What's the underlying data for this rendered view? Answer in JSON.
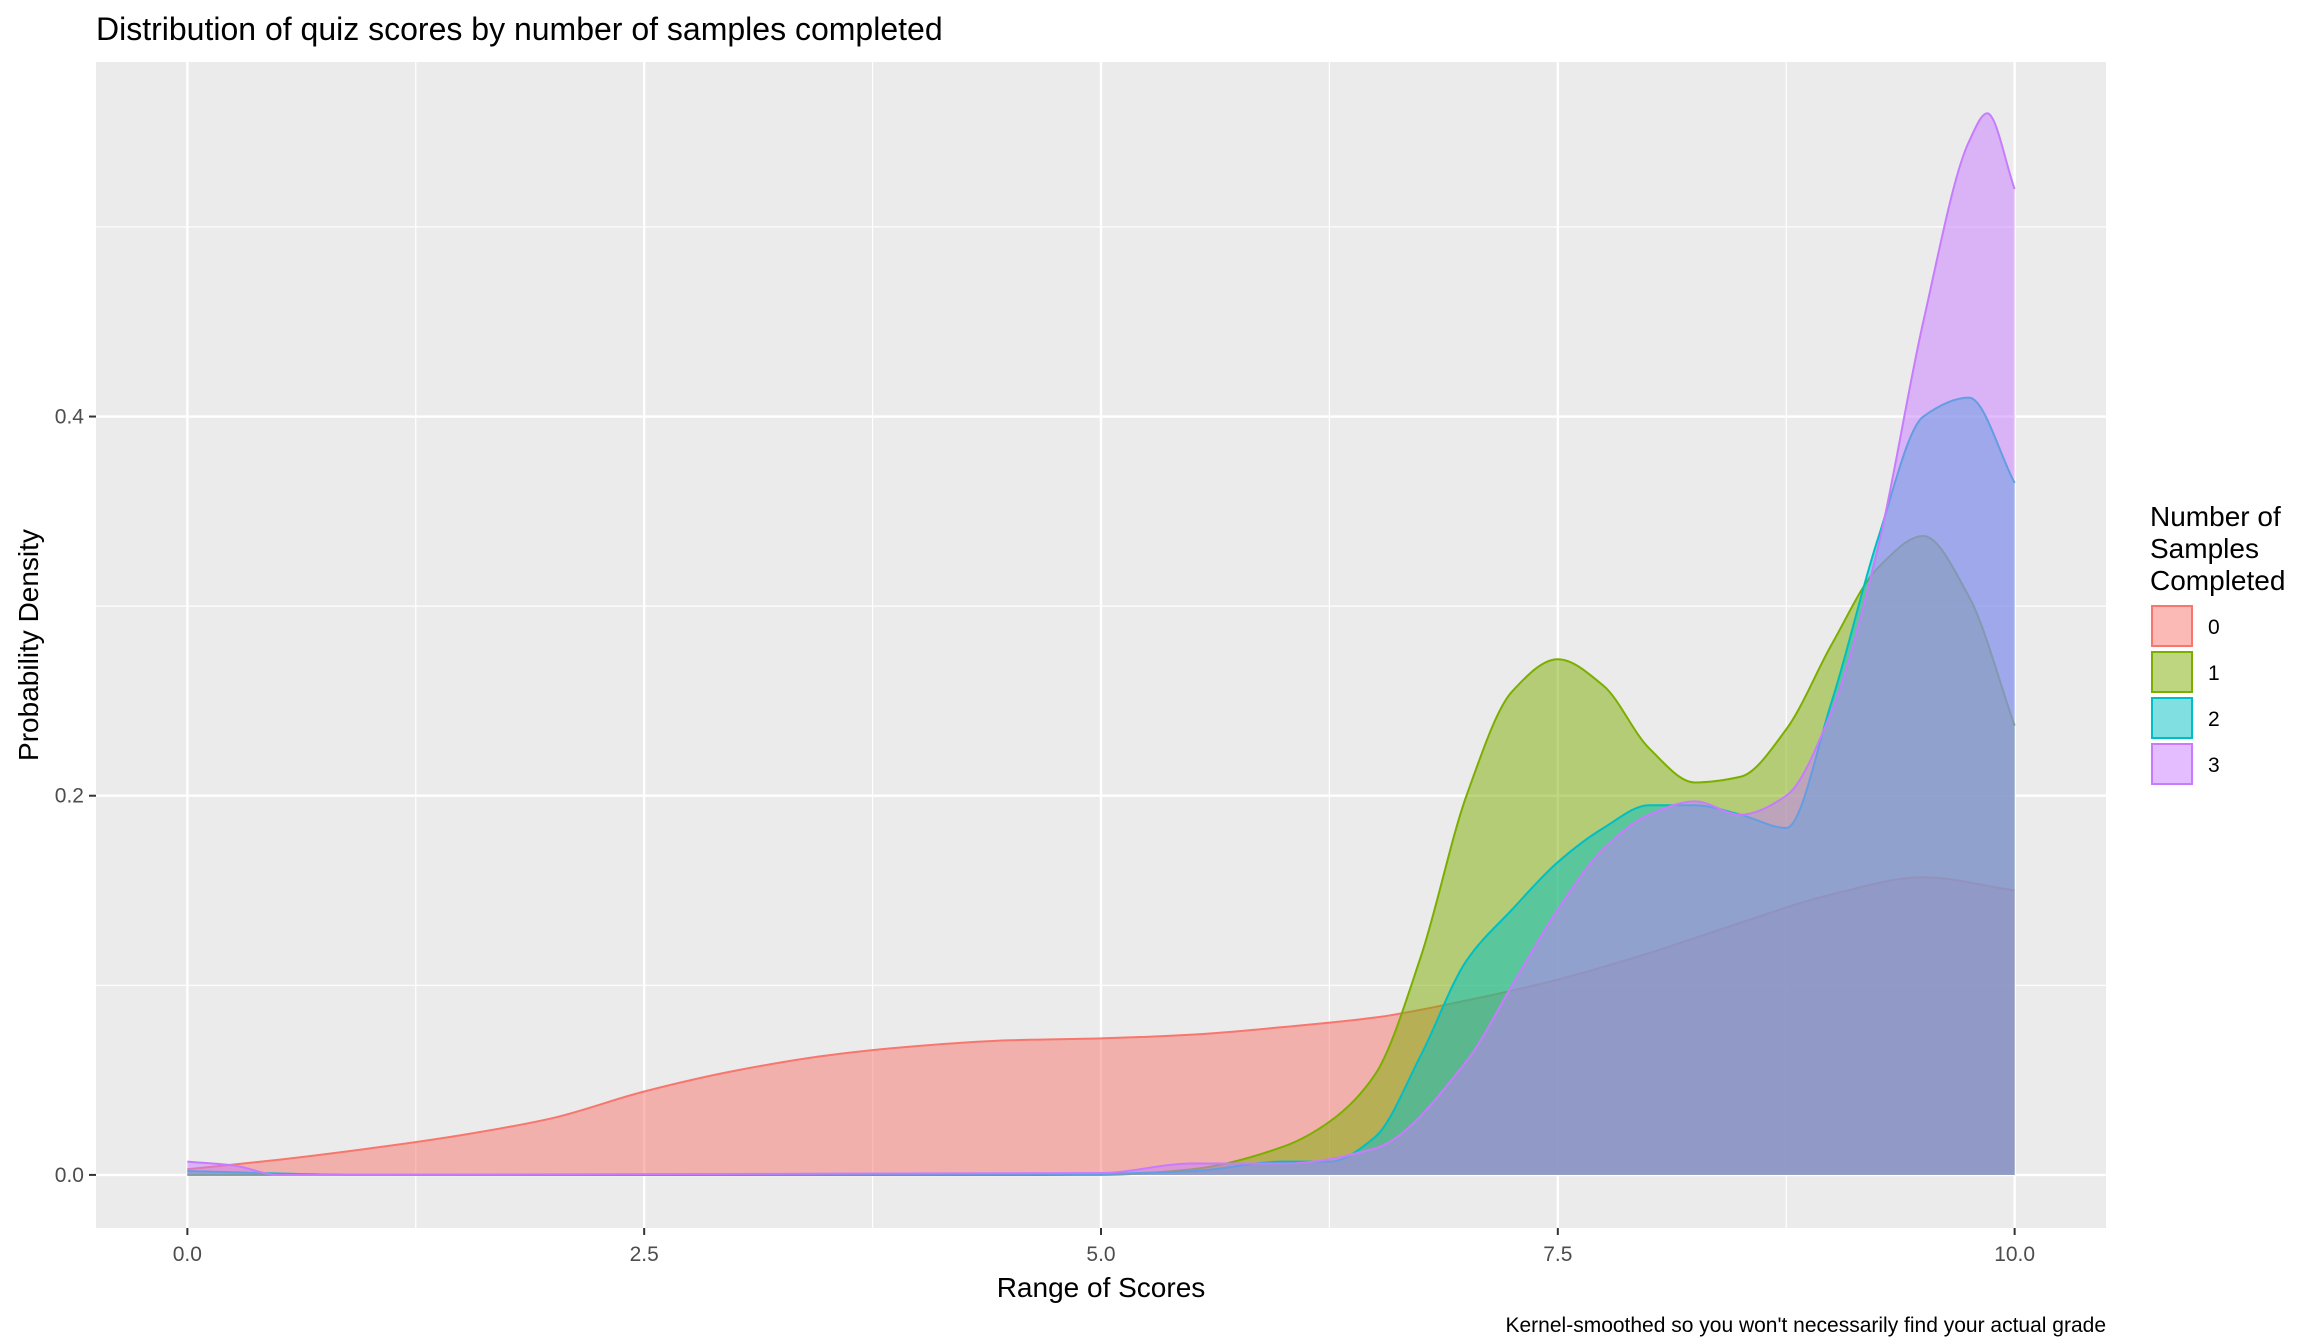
{
  "chart_data": {
    "type": "area",
    "subtype": "density",
    "title": "Distribution of quiz scores by number of samples completed",
    "xlabel": "Range of Scores",
    "ylabel": "Probability Density",
    "caption": "Kernel-smoothed so you won't necessarily find your actual grade",
    "xlim": [
      -0.5,
      10.5
    ],
    "ylim": [
      -0.028,
      0.587
    ],
    "x_ticks": [
      0,
      2.5,
      5,
      7.5,
      10
    ],
    "x_tick_labels": [
      "0.0",
      "2.5",
      "5.0",
      "7.5",
      "10.0"
    ],
    "y_ticks": [
      0,
      0.2,
      0.4
    ],
    "y_tick_labels": [
      "0.0",
      "0.2",
      "0.4"
    ],
    "grid": true,
    "legend": {
      "title": "Number of Samples Completed",
      "title_lines": [
        "Number of",
        "Samples",
        "Completed"
      ],
      "position": "right"
    },
    "series": [
      {
        "name": "0",
        "color": "#F8766D",
        "x": [
          0,
          0.5,
          1,
          1.5,
          2,
          2.5,
          3,
          3.5,
          4,
          4.5,
          5,
          5.5,
          6,
          6.5,
          7,
          7.5,
          8,
          8.5,
          9,
          9.5,
          10
        ],
        "y": [
          0.003,
          0.008,
          0.014,
          0.021,
          0.03,
          0.044,
          0.055,
          0.063,
          0.068,
          0.071,
          0.072,
          0.074,
          0.078,
          0.083,
          0.092,
          0.103,
          0.117,
          0.133,
          0.148,
          0.157,
          0.15
        ]
      },
      {
        "name": "1",
        "color": "#7CAE00",
        "x": [
          0,
          5,
          5.5,
          6,
          6.25,
          6.5,
          6.75,
          7,
          7.25,
          7.5,
          7.75,
          8,
          8.25,
          8.5,
          8.75,
          9,
          9.25,
          9.5,
          9.75,
          10
        ],
        "y": [
          0,
          0,
          0.003,
          0.015,
          0.028,
          0.053,
          0.115,
          0.2,
          0.255,
          0.272,
          0.258,
          0.225,
          0.207,
          0.21,
          0.235,
          0.28,
          0.32,
          0.337,
          0.305,
          0.237
        ]
      },
      {
        "name": "2",
        "color": "#00BFC4",
        "x": [
          0,
          1,
          4.6,
          5.5,
          6,
          6.25,
          6.5,
          6.75,
          7,
          7.25,
          7.5,
          7.75,
          8,
          8.25,
          8.5,
          8.75,
          9,
          9.25,
          9.5,
          9.75,
          10
        ],
        "y": [
          0.002,
          0,
          0,
          0.002,
          0.007,
          0.007,
          0.02,
          0.063,
          0.113,
          0.14,
          0.165,
          0.183,
          0.195,
          0.195,
          0.19,
          0.183,
          0.25,
          0.335,
          0.4,
          0.41,
          0.365
        ]
      },
      {
        "name": "3",
        "color": "#C77CFF",
        "x": [
          0,
          0.25,
          0.5,
          5,
          5.5,
          6,
          6.5,
          7,
          7.25,
          7.5,
          7.75,
          8,
          8.25,
          8.5,
          8.75,
          9,
          9.25,
          9.5,
          9.75,
          9.85,
          10
        ],
        "y": [
          0.007,
          0.005,
          0,
          0.001,
          0.006,
          0.006,
          0.014,
          0.06,
          0.1,
          0.14,
          0.172,
          0.19,
          0.197,
          0.19,
          0.2,
          0.245,
          0.33,
          0.45,
          0.545,
          0.56,
          0.52
        ]
      }
    ]
  }
}
